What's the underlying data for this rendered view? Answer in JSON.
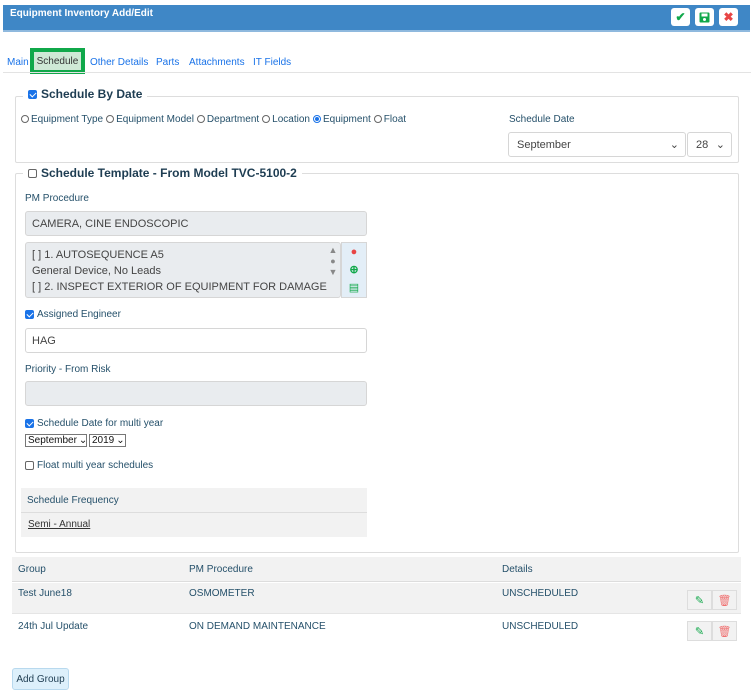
{
  "header": {
    "title": "Equipment Inventory Add/Edit",
    "buttons": [
      {
        "icon": "check-icon",
        "color": "#10a84a"
      },
      {
        "icon": "save-icon",
        "color": "#10a84a"
      },
      {
        "icon": "close-icon",
        "color": "#e84545"
      }
    ]
  },
  "tabs": [
    {
      "label": "Main"
    },
    {
      "label": "Schedule",
      "active": true
    },
    {
      "label": "Other Details"
    },
    {
      "label": "Parts"
    },
    {
      "label": "Attachments"
    },
    {
      "label": "IT Fields"
    }
  ],
  "schedule_by_date": {
    "legend": "Schedule By Date",
    "checked": true,
    "options": [
      {
        "label": "Equipment Type",
        "selected": false
      },
      {
        "label": "Equipment Model",
        "selected": false
      },
      {
        "label": "Department",
        "selected": false
      },
      {
        "label": "Location",
        "selected": false
      },
      {
        "label": "Equipment",
        "selected": true
      },
      {
        "label": "Float",
        "selected": false
      }
    ],
    "schedule_date_label": "Schedule Date",
    "month": "September",
    "day": "28"
  },
  "template": {
    "legend": "Schedule Template - From Model TVC-5100-2",
    "checked": false,
    "pm_label": "PM Procedure",
    "pm_value": "CAMERA, CINE ENDOSCOPIC",
    "steps": [
      "[  ] 1. AUTOSEQUENCE A5",
      "General Device, No Leads",
      "[  ] 2. INSPECT EXTERIOR OF EQUIPMENT FOR DAMAGE"
    ],
    "assigned_label": "Assigned Engineer",
    "assigned_checked": true,
    "assigned_value": "HAG",
    "priority_label": "Priority - From Risk",
    "priority_value": "",
    "multi_label": "Schedule Date for multi year",
    "multi_checked": true,
    "multi_month": "September",
    "multi_year": "2019",
    "float_label": "Float multi year schedules",
    "float_checked": false,
    "freq_header": "Schedule Frequency",
    "freq_value": "Semi - Annual"
  },
  "groups": {
    "columns": [
      "Group",
      "PM Procedure",
      "Details"
    ],
    "rows": [
      {
        "group": "Test June18",
        "pm": "OSMOMETER",
        "details": "UNSCHEDULED"
      },
      {
        "group": "24th Jul Update",
        "pm": "ON DEMAND MAINTENANCE",
        "details": "UNSCHEDULED"
      }
    ],
    "add_label": "Add Group"
  }
}
